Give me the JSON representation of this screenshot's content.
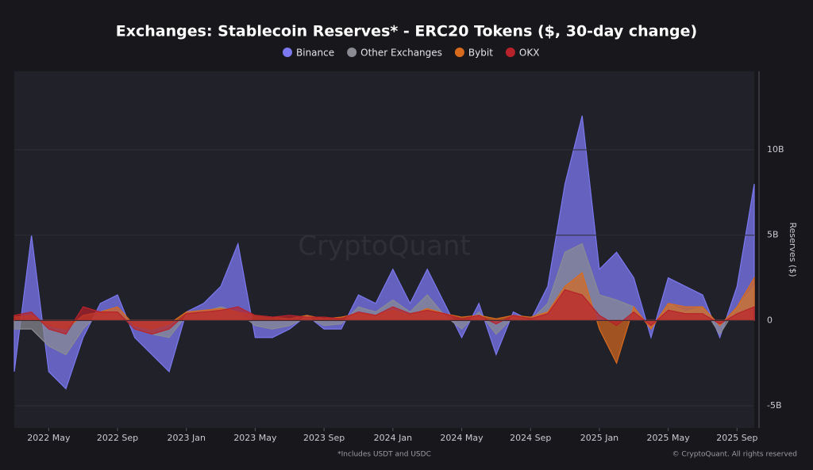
{
  "chart_data": {
    "type": "area",
    "title": "Exchanges: Stablecoin Reserves* - ERC20 Tokens ($, 30-day change)",
    "y_label": "Reserves ($)",
    "footnote": "*Includes USDT and USDC",
    "credit": "© CryptoQuant. All rights reserved",
    "watermark": "CryptoQuant",
    "x": [
      "2022-03",
      "2022-04",
      "2022-05",
      "2022-06",
      "2022-07",
      "2022-08",
      "2022-09",
      "2022-10",
      "2022-11",
      "2022-12",
      "2023-01",
      "2023-02",
      "2023-03",
      "2023-04",
      "2023-05",
      "2023-06",
      "2023-07",
      "2023-08",
      "2023-09",
      "2023-10",
      "2023-11",
      "2023-12",
      "2024-01",
      "2024-02",
      "2024-03",
      "2024-04",
      "2024-05",
      "2024-06",
      "2024-07",
      "2024-08",
      "2024-09",
      "2024-10",
      "2024-11",
      "2024-12",
      "2025-01",
      "2025-02",
      "2025-03",
      "2025-04",
      "2025-05",
      "2025-06",
      "2025-07",
      "2025-08",
      "2025-09",
      "2025-10"
    ],
    "xlim": [
      "2022-03",
      "2025-10"
    ],
    "xticks": [
      {
        "value": "2022-05",
        "label": "2022 May"
      },
      {
        "value": "2022-09",
        "label": "2022 Sep"
      },
      {
        "value": "2023-01",
        "label": "2023 Jan"
      },
      {
        "value": "2023-05",
        "label": "2023 May"
      },
      {
        "value": "2023-09",
        "label": "2023 Sep"
      },
      {
        "value": "2024-01",
        "label": "2024 Jan"
      },
      {
        "value": "2024-05",
        "label": "2024 May"
      },
      {
        "value": "2024-09",
        "label": "2024 Sep"
      },
      {
        "value": "2025-01",
        "label": "2025 Jan"
      },
      {
        "value": "2025-05",
        "label": "2025 May"
      },
      {
        "value": "2025-09",
        "label": "2025 Sep"
      }
    ],
    "ylim": [
      -6.3,
      14.6
    ],
    "yticks": [
      {
        "value": -5,
        "label": "-5B"
      },
      0,
      {
        "value": 5,
        "label": "5B"
      },
      {
        "value": 10,
        "label": "10B"
      }
    ],
    "grid": true,
    "series": [
      {
        "name": "Binance",
        "color": "#7b78f0",
        "values": [
          -3,
          5,
          -3,
          -4,
          -1,
          1,
          1.5,
          -1,
          -2,
          -3,
          0.5,
          1,
          2,
          4.5,
          -1,
          -1,
          -0.5,
          0.3,
          -0.5,
          -0.5,
          1.5,
          1,
          3,
          1,
          3,
          1,
          -1,
          1,
          -2,
          0.5,
          0,
          2,
          8,
          12,
          3,
          4,
          2.5,
          -1,
          2.5,
          2,
          1.5,
          -1,
          2,
          8
        ]
      },
      {
        "name": "Other Exchanges",
        "color": "#8a8b93",
        "values": [
          -0.5,
          -0.5,
          -1.5,
          -2,
          -0.5,
          0.5,
          0.5,
          -0.5,
          -0.8,
          -1,
          0.3,
          0.5,
          0.8,
          0.5,
          -0.3,
          -0.5,
          -0.3,
          0.2,
          -0.3,
          -0.2,
          0.8,
          0.5,
          1.2,
          0.5,
          1.5,
          0.3,
          -0.5,
          0.5,
          -0.8,
          0.2,
          0,
          1,
          4,
          4.5,
          1.5,
          1.2,
          0.8,
          -0.5,
          1,
          0.5,
          0.8,
          -0.8,
          0.8,
          2
        ]
      },
      {
        "name": "Bybit",
        "color": "#d86a1e",
        "values": [
          0.2,
          0.3,
          -0.3,
          -0.5,
          0.3,
          0.5,
          0.8,
          -0.3,
          -0.5,
          -0.2,
          0.5,
          0.6,
          0.7,
          0.5,
          0.3,
          0.2,
          0.1,
          0.3,
          0.1,
          0.2,
          0.4,
          0.3,
          0.6,
          0.3,
          0.7,
          0.4,
          0.2,
          0.3,
          0.1,
          0.3,
          0.2,
          0.5,
          2,
          2.8,
          -0.5,
          -2.5,
          0.8,
          -0.5,
          1,
          0.8,
          0.8,
          -0.3,
          0.8,
          2.5
        ]
      },
      {
        "name": "OKX",
        "color": "#b8222b",
        "values": [
          0.3,
          0.5,
          -0.5,
          -0.8,
          0.8,
          0.5,
          0.5,
          -0.5,
          -0.8,
          -0.5,
          0.4,
          0.5,
          0.6,
          0.8,
          0.3,
          0.2,
          0.3,
          0.2,
          0.2,
          0.1,
          0.5,
          0.3,
          0.8,
          0.4,
          0.6,
          0.4,
          0.1,
          0.3,
          -0.2,
          0.3,
          0.1,
          0.4,
          1.8,
          1.5,
          0.3,
          -0.3,
          0.5,
          -0.3,
          0.6,
          0.4,
          0.4,
          -0.2,
          0.4,
          0.8
        ]
      }
    ]
  }
}
